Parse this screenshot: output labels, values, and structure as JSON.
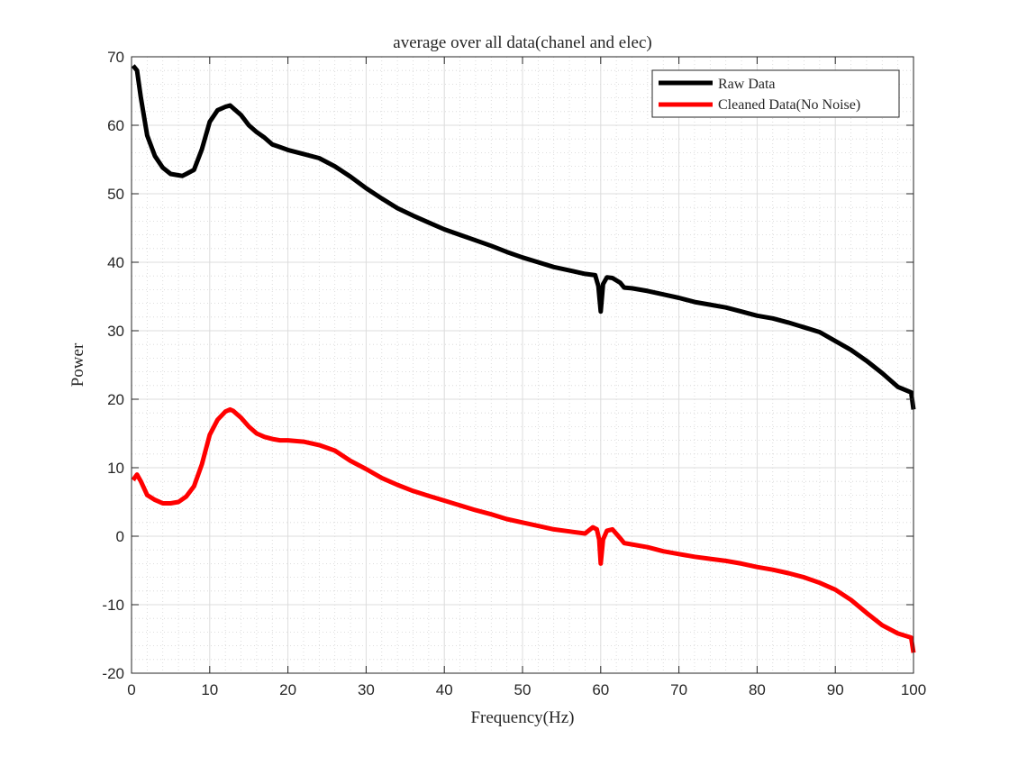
{
  "chart_data": {
    "type": "line",
    "title": "average over all data(chanel and elec)",
    "xlabel": "Frequency(Hz)",
    "ylabel": "Power",
    "xlim": [
      0,
      100
    ],
    "ylim": [
      -20,
      70
    ],
    "x_ticks": [
      0,
      10,
      20,
      30,
      40,
      50,
      60,
      70,
      80,
      90,
      100
    ],
    "y_ticks": [
      -20,
      -10,
      0,
      10,
      20,
      30,
      40,
      50,
      60,
      70
    ],
    "grid": true,
    "minor_grid": true,
    "legend_position": "top-right",
    "series": [
      {
        "name": "Raw Data",
        "color": "#000000",
        "x": [
          0.2,
          0.7,
          1.2,
          2,
          3,
          4,
          5,
          6,
          6.5,
          7,
          8,
          9,
          10,
          11,
          12,
          12.6,
          13,
          14,
          15,
          16,
          17,
          18,
          19,
          20,
          22,
          24,
          26,
          28,
          30,
          32,
          34,
          36,
          38,
          40,
          42,
          44,
          46,
          48,
          50,
          52,
          54,
          56,
          58,
          59.3,
          59.7,
          60.0,
          60.3,
          60.8,
          61.5,
          62.5,
          63,
          64,
          66,
          68,
          70,
          72,
          74,
          76,
          78,
          80,
          82,
          84,
          86,
          88,
          90,
          92,
          94,
          96,
          98,
          99.7,
          100
        ],
        "y": [
          68.7,
          68.0,
          64.0,
          58.5,
          55.5,
          53.8,
          52.9,
          52.7,
          52.6,
          52.9,
          53.5,
          56.5,
          60.5,
          62.2,
          62.7,
          62.9,
          62.5,
          61.5,
          60.0,
          59.0,
          58.2,
          57.2,
          56.8,
          56.4,
          55.8,
          55.2,
          54.0,
          52.5,
          50.8,
          49.3,
          47.9,
          46.8,
          45.8,
          44.8,
          44.0,
          43.2,
          42.4,
          41.5,
          40.7,
          40.0,
          39.3,
          38.8,
          38.3,
          38.1,
          36.5,
          32.8,
          36.8,
          37.8,
          37.7,
          37.0,
          36.3,
          36.2,
          35.8,
          35.3,
          34.8,
          34.2,
          33.8,
          33.4,
          32.8,
          32.2,
          31.8,
          31.2,
          30.5,
          29.8,
          28.5,
          27.2,
          25.6,
          23.8,
          21.8,
          21.0,
          18.5
        ]
      },
      {
        "name": "Cleaned Data(No Noise)",
        "color": "#ff0000",
        "x": [
          0.2,
          0.7,
          1.2,
          2,
          3,
          4,
          5,
          6,
          7,
          8,
          9,
          10,
          11,
          12,
          12.6,
          13,
          14,
          15,
          16,
          17,
          18,
          19,
          20,
          22,
          24,
          26,
          28,
          30,
          32,
          34,
          36,
          38,
          40,
          42,
          44,
          46,
          48,
          50,
          52,
          54,
          56,
          58,
          59.0,
          59.5,
          59.8,
          60.0,
          60.3,
          60.8,
          61.5,
          62.5,
          63,
          64,
          66,
          68,
          70,
          72,
          74,
          76,
          78,
          80,
          82,
          84,
          86,
          88,
          90,
          92,
          94,
          96,
          98,
          99.7,
          100
        ],
        "y": [
          8.2,
          9.0,
          8.0,
          6.0,
          5.3,
          4.8,
          4.8,
          5.0,
          5.8,
          7.3,
          10.5,
          14.8,
          17.0,
          18.2,
          18.5,
          18.3,
          17.3,
          16.0,
          15.0,
          14.5,
          14.2,
          14.0,
          14.0,
          13.8,
          13.3,
          12.5,
          11.0,
          9.8,
          8.5,
          7.5,
          6.6,
          5.9,
          5.2,
          4.5,
          3.8,
          3.2,
          2.5,
          2.0,
          1.5,
          1.0,
          0.7,
          0.4,
          1.3,
          1.0,
          -0.5,
          -4.0,
          -0.5,
          0.8,
          1.0,
          -0.3,
          -1.0,
          -1.2,
          -1.6,
          -2.2,
          -2.6,
          -3.0,
          -3.3,
          -3.6,
          -4.0,
          -4.5,
          -4.9,
          -5.4,
          -6.0,
          -6.8,
          -7.8,
          -9.3,
          -11.2,
          -13.0,
          -14.2,
          -14.8,
          -17.0
        ]
      }
    ]
  }
}
